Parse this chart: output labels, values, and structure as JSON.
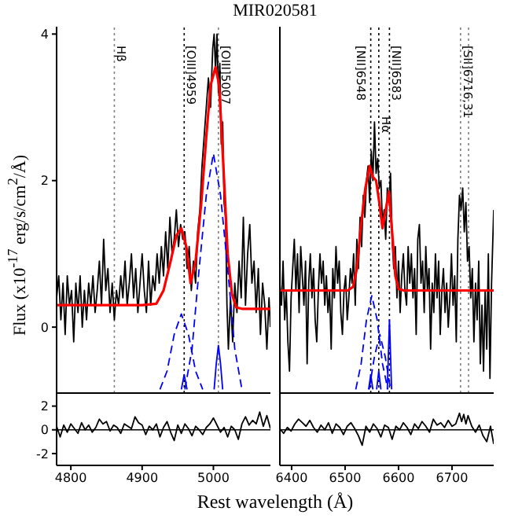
{
  "chart_data": [
    {
      "type": "line",
      "title": "MIR020581",
      "ylabel": "Flux (x10$^{-17}$ erg/s/cm$^{2}$/Å)",
      "xlim": [
        4780,
        5080
      ],
      "xticks": [
        4800,
        4900,
        5000
      ],
      "ylim": [
        -0.9,
        4.1
      ],
      "yticks": [
        0,
        2,
        4
      ],
      "tick_labels": "y",
      "marker": "none",
      "ref_lines": [
        {
          "axis": "x",
          "value": 4861,
          "label": "Hβ",
          "line_style": "dotted",
          "color": "#808080"
        },
        {
          "axis": "x",
          "value": 4959,
          "label": "[OIII]4959",
          "line_style": "dotted",
          "color": "#000000"
        },
        {
          "axis": "x",
          "value": 5007,
          "label": "[OIII]5007",
          "line_style": "dotted",
          "color": "#808080"
        }
      ],
      "series": [
        {
          "color": "#000000",
          "line_style": "solid",
          "x": [
            4780,
            4783,
            4786,
            4789,
            4792,
            4795,
            4798,
            4801,
            4804,
            4807,
            4810,
            4813,
            4816,
            4819,
            4822,
            4825,
            4828,
            4831,
            4834,
            4837,
            4840,
            4843,
            4846,
            4849,
            4852,
            4855,
            4858,
            4861,
            4864,
            4867,
            4870,
            4873,
            4876,
            4879,
            4882,
            4885,
            4888,
            4891,
            4894,
            4897,
            4900,
            4903,
            4906,
            4909,
            4912,
            4915,
            4918,
            4921,
            4924,
            4927,
            4930,
            4933,
            4936,
            4939,
            4942,
            4945,
            4948,
            4951,
            4954,
            4957,
            4960,
            4963,
            4966,
            4969,
            4972,
            4975,
            4978,
            4981,
            4984,
            4987,
            4990,
            4993,
            4996,
            4999,
            5001,
            5003,
            5005,
            5007,
            5009,
            5011,
            5013,
            5015,
            5017,
            5019,
            5021,
            5024,
            5027,
            5030,
            5033,
            5036,
            5039,
            5042,
            5045,
            5048,
            5051,
            5054,
            5057,
            5060,
            5063,
            5066,
            5069,
            5072,
            5075,
            5078,
            5080
          ],
          "values": [
            0.4,
            0.7,
            0.1,
            0.6,
            -0.1,
            0.7,
            0.3,
            0.5,
            -0.2,
            0.6,
            0.2,
            0.7,
            0.0,
            0.5,
            0.1,
            0.6,
            0.3,
            0.7,
            0.2,
            0.5,
            0.9,
            0.3,
            1.2,
            0.5,
            0.8,
            0.2,
            0.6,
            0.1,
            0.5,
            0.3,
            0.7,
            0.4,
            0.9,
            0.3,
            0.6,
            1.0,
            0.4,
            0.8,
            0.2,
            0.6,
            1.0,
            0.5,
            0.2,
            0.9,
            0.3,
            0.7,
            0.5,
            1.0,
            0.6,
            1.1,
            0.7,
            1.3,
            0.8,
            1.5,
            1.0,
            1.2,
            1.6,
            1.1,
            1.4,
            1.2,
            1.3,
            0.8,
            1.1,
            0.5,
            0.9,
            0.6,
            1.3,
            1.6,
            2.2,
            2.6,
            3.0,
            3.4,
            3.0,
            3.8,
            4.0,
            3.5,
            4.0,
            3.2,
            3.6,
            2.5,
            2.8,
            1.7,
            1.5,
            0.3,
            -0.3,
            0.4,
            -0.2,
            0.6,
            0.2,
            0.9,
            0.4,
            1.5,
            0.3,
            1.0,
            1.4,
            0.6,
            0.9,
            0.2,
            0.8,
            -0.1,
            0.6,
            0.3,
            -0.3,
            0.4,
            0.0
          ]
        },
        {
          "color": "#ff0000",
          "line_style": "solid",
          "x": [
            4780,
            4900,
            4920,
            4930,
            4940,
            4948,
            4955,
            4962,
            4968,
            4975,
            4983,
            4990,
            4996,
            5003,
            5008,
            5014,
            5020,
            5026,
            5032,
            5040,
            5080
          ],
          "values": [
            0.3,
            0.3,
            0.32,
            0.5,
            0.9,
            1.25,
            1.35,
            1.1,
            0.6,
            0.9,
            1.7,
            2.6,
            3.3,
            3.55,
            3.3,
            2.2,
            1.0,
            0.45,
            0.27,
            0.25,
            0.25
          ]
        },
        {
          "color": "#0000ff",
          "line_style": "dashed",
          "x": [
            4925,
            4935,
            4945,
            4955,
            4965,
            4975,
            4985
          ],
          "values": [
            -0.85,
            -0.6,
            -0.1,
            0.18,
            -0.1,
            -0.6,
            -0.85
          ]
        },
        {
          "color": "#0000ff",
          "line_style": "dashed",
          "x": [
            4960,
            4970,
            4980,
            4990,
            5000,
            5010,
            5020,
            5030,
            5040
          ],
          "values": [
            -0.85,
            -0.3,
            0.8,
            1.8,
            2.37,
            1.8,
            0.8,
            -0.3,
            -0.85
          ]
        },
        {
          "color": "#0000ff",
          "line_style": "solid",
          "x": [
            4955,
            4959,
            4963,
            4984,
            5001,
            5004,
            5007,
            5010,
            5013
          ],
          "values": [
            -0.85,
            -0.65,
            -0.85,
            null,
            -0.85,
            -0.5,
            -0.25,
            -0.5,
            -0.85
          ]
        }
      ]
    },
    {
      "type": "line",
      "xlim": [
        6378,
        6778
      ],
      "xticks": [
        6400,
        6500,
        6600,
        6700
      ],
      "ylim": [
        -0.9,
        4.1
      ],
      "yticks": [
        0,
        2,
        4
      ],
      "tick_labels": false,
      "marker": "none",
      "ref_lines": [
        {
          "axis": "x",
          "value": 6548,
          "label": "[NII]6548",
          "line_style": "dotted",
          "color": "#000000"
        },
        {
          "axis": "x",
          "value": 6563,
          "label": "Hα",
          "line_style": "dotted",
          "color": "#000000"
        },
        {
          "axis": "x",
          "value": 6583,
          "label": "[NII]6583",
          "line_style": "dotted",
          "color": "#000000"
        },
        {
          "axis": "x",
          "value": 6716,
          "label": "[SII]6716,31",
          "line_style": "dotted",
          "color": "#808080"
        },
        {
          "axis": "x",
          "value": 6731,
          "line_style": "dotted",
          "color": "#808080"
        }
      ],
      "series": [
        {
          "color": "#000000",
          "line_style": "solid",
          "x": [
            6378,
            6381,
            6384,
            6387,
            6390,
            6393,
            6396,
            6399,
            6402,
            6405,
            6408,
            6411,
            6414,
            6417,
            6420,
            6423,
            6426,
            6429,
            6432,
            6435,
            6438,
            6441,
            6444,
            6447,
            6450,
            6453,
            6456,
            6459,
            6462,
            6465,
            6468,
            6471,
            6474,
            6477,
            6480,
            6483,
            6486,
            6489,
            6492,
            6495,
            6498,
            6501,
            6504,
            6507,
            6510,
            6513,
            6516,
            6519,
            6522,
            6525,
            6528,
            6531,
            6534,
            6537,
            6540,
            6543,
            6546,
            6549,
            6552,
            6555,
            6558,
            6561,
            6564,
            6567,
            6570,
            6573,
            6576,
            6579,
            6582,
            6585,
            6588,
            6591,
            6594,
            6597,
            6600,
            6603,
            6606,
            6609,
            6612,
            6615,
            6618,
            6621,
            6624,
            6627,
            6630,
            6633,
            6636,
            6639,
            6642,
            6645,
            6648,
            6651,
            6654,
            6657,
            6660,
            6663,
            6666,
            6669,
            6672,
            6675,
            6678,
            6681,
            6684,
            6687,
            6690,
            6693,
            6696,
            6699,
            6702,
            6705,
            6708,
            6711,
            6714,
            6717,
            6720,
            6723,
            6726,
            6729,
            6732,
            6735,
            6738,
            6741,
            6744,
            6747,
            6750,
            6753,
            6756,
            6759,
            6762,
            6765,
            6768,
            6771,
            6774,
            6778
          ],
          "values": [
            0.6,
            0.3,
            0.9,
            0.1,
            0.5,
            -0.2,
            -0.6,
            0.4,
            0.8,
            1.2,
            0.5,
            1.0,
            0.2,
            1.1,
            0.7,
            0.3,
            0.9,
            -0.5,
            0.6,
            1.0,
            0.4,
            0.8,
            0.1,
            -0.2,
            0.5,
            1.0,
            0.6,
            0.9,
            0.3,
            0.7,
            0.2,
            0.5,
            -0.3,
            0.8,
            0.4,
            1.1,
            0.6,
            0.9,
            0.2,
            -0.1,
            0.5,
            0.7,
            0.1,
            0.4,
            0.8,
            0.6,
            1.0,
            0.3,
            1.2,
            0.8,
            1.5,
            1.1,
            1.8,
            1.5,
            2.0,
            2.2,
            1.7,
            2.4,
            2.0,
            2.8,
            2.1,
            2.3,
            1.9,
            2.0,
            1.4,
            1.6,
            1.2,
            1.9,
            1.7,
            2.1,
            1.2,
            0.8,
            1.1,
            0.4,
            0.9,
            0.2,
            0.7,
            1.0,
            0.5,
            0.3,
            1.1,
            0.6,
            1.0,
            0.4,
            0.8,
            -0.1,
            1.2,
            1.4,
            0.6,
            0.9,
            0.2,
            1.1,
            0.5,
            0.8,
            -0.3,
            0.6,
            0.2,
            1.0,
            0.4,
            0.9,
            -0.1,
            0.5,
            0.8,
            0.2,
            0.6,
            0.0,
            0.4,
            1.0,
            0.3,
            0.7,
            -0.2,
            1.2,
            1.8,
            1.6,
            1.9,
            1.3,
            1.7,
            0.9,
            1.1,
            0.4,
            0.8,
            -0.2,
            0.6,
            0.1,
            0.9,
            -0.5,
            0.3,
            -0.6,
            0.5,
            -0.3,
            1.0,
            -0.7,
            0.6,
            1.6
          ]
        },
        {
          "color": "#ff0000",
          "line_style": "solid",
          "x": [
            6378,
            6505,
            6515,
            6522,
            6530,
            6538,
            6546,
            6552,
            6558,
            6564,
            6570,
            6576,
            6582,
            6588,
            6594,
            6600,
            6610,
            6778
          ],
          "values": [
            0.5,
            0.5,
            0.55,
            0.8,
            1.4,
            1.9,
            2.2,
            2.05,
            2.0,
            1.7,
            1.35,
            1.6,
            1.85,
            1.3,
            0.7,
            0.52,
            0.5,
            0.5
          ]
        },
        {
          "color": "#0000ff",
          "line_style": "dashed",
          "x": [
            6520,
            6530,
            6540,
            6550,
            6560,
            6570,
            6580
          ],
          "values": [
            -0.85,
            -0.5,
            0.1,
            0.43,
            0.1,
            -0.5,
            -0.85
          ]
        },
        {
          "color": "#0000ff",
          "line_style": "dashed",
          "x": [
            6545,
            6555,
            6565,
            6575,
            6585
          ],
          "values": [
            -0.85,
            -0.4,
            -0.1,
            -0.4,
            -0.85
          ]
        },
        {
          "color": "#0000ff",
          "line_style": "solid",
          "x": [
            6544,
            6548,
            6552,
            6555,
            6559,
            6563,
            6567,
            6573,
            6579,
            6583,
            6587
          ],
          "values": [
            -0.85,
            -0.65,
            -0.85,
            null,
            -0.85,
            -0.6,
            -0.85,
            null,
            -0.85,
            0.1,
            -0.85
          ]
        }
      ]
    },
    {
      "type": "line",
      "xlabel": "Rest wavelength (Å)",
      "xlim": [
        4780,
        5080
      ],
      "xticks": [
        4800,
        4900,
        5000
      ],
      "ylim": [
        -3,
        3.1
      ],
      "yticks": [
        -2,
        0,
        2
      ],
      "marker": "none",
      "ref_lines": [
        {
          "axis": "y",
          "value": 0,
          "line_style": "solid",
          "color": "#000000"
        }
      ],
      "series": [
        {
          "color": "#000000",
          "line_style": "solid",
          "x": [
            4780,
            4785,
            4790,
            4795,
            4800,
            4805,
            4810,
            4815,
            4820,
            4825,
            4830,
            4835,
            4840,
            4845,
            4850,
            4855,
            4860,
            4865,
            4870,
            4875,
            4880,
            4885,
            4890,
            4895,
            4900,
            4905,
            4910,
            4915,
            4920,
            4925,
            4930,
            4935,
            4940,
            4945,
            4950,
            4955,
            4960,
            4965,
            4970,
            4975,
            4980,
            4985,
            4990,
            4995,
            5000,
            5005,
            5010,
            5015,
            5020,
            5025,
            5030,
            5035,
            5040,
            5045,
            5050,
            5055,
            5060,
            5065,
            5070,
            5075,
            5080
          ],
          "values": [
            0.3,
            -0.6,
            0.4,
            -0.2,
            0.5,
            0.1,
            -0.3,
            0.6,
            0.0,
            0.4,
            -0.2,
            0.2,
            0.9,
            0.5,
            0.7,
            -0.1,
            0.4,
            0.2,
            -0.3,
            0.5,
            0.3,
            0.1,
            1.1,
            0.6,
            0.4,
            -0.4,
            0.3,
            0.0,
            0.5,
            -0.6,
            0.2,
            0.7,
            -0.2,
            -0.9,
            0.4,
            -0.3,
            0.5,
            0.1,
            -0.5,
            0.3,
            0.0,
            -0.4,
            0.2,
            0.5,
            1.0,
            0.4,
            -0.2,
            0.2,
            -0.6,
            0.3,
            0.0,
            -0.8,
            0.5,
            1.1,
            0.4,
            0.8,
            0.5,
            1.5,
            0.3,
            1.2,
            0.1
          ]
        }
      ]
    },
    {
      "type": "line",
      "xlim": [
        6378,
        6778
      ],
      "xticks": [
        6400,
        6500,
        6600,
        6700
      ],
      "ylim": [
        -3,
        3.1
      ],
      "yticks": [
        -2,
        0,
        2
      ],
      "tick_labels": "x",
      "marker": "none",
      "ref_lines": [
        {
          "axis": "y",
          "value": 0,
          "line_style": "solid",
          "color": "#000000"
        }
      ],
      "series": [
        {
          "color": "#000000",
          "line_style": "solid",
          "x": [
            6378,
            6385,
            6392,
            6399,
            6406,
            6413,
            6420,
            6427,
            6434,
            6441,
            6448,
            6455,
            6462,
            6469,
            6476,
            6483,
            6490,
            6497,
            6504,
            6511,
            6518,
            6525,
            6532,
            6539,
            6546,
            6553,
            6560,
            6567,
            6574,
            6581,
            6588,
            6595,
            6602,
            6609,
            6616,
            6623,
            6630,
            6637,
            6644,
            6651,
            6658,
            6665,
            6672,
            6679,
            6686,
            6693,
            6700,
            6707,
            6714,
            6718,
            6722,
            6726,
            6730,
            6737,
            6744,
            6751,
            6758,
            6765,
            6772,
            6778
          ],
          "values": [
            0.1,
            -0.3,
            0.2,
            -0.1,
            0.5,
            0.9,
            0.6,
            0.3,
            0.8,
            0.2,
            -0.2,
            0.4,
            0.0,
            0.6,
            -0.3,
            0.5,
            0.2,
            -0.4,
            0.3,
            0.6,
            0.1,
            -0.5,
            -1.3,
            0.3,
            -0.2,
            0.5,
            0.1,
            -0.6,
            0.4,
            0.2,
            -0.8,
            0.3,
            0.0,
            0.6,
            0.2,
            -0.4,
            0.5,
            0.1,
            0.7,
            0.3,
            -0.2,
            0.9,
            0.4,
            0.6,
            0.2,
            0.8,
            0.3,
            0.5,
            1.4,
            0.7,
            1.3,
            0.5,
            1.2,
            0.3,
            -0.2,
            0.4,
            -0.5,
            -1.0,
            0.3,
            -1.2
          ]
        }
      ]
    }
  ]
}
